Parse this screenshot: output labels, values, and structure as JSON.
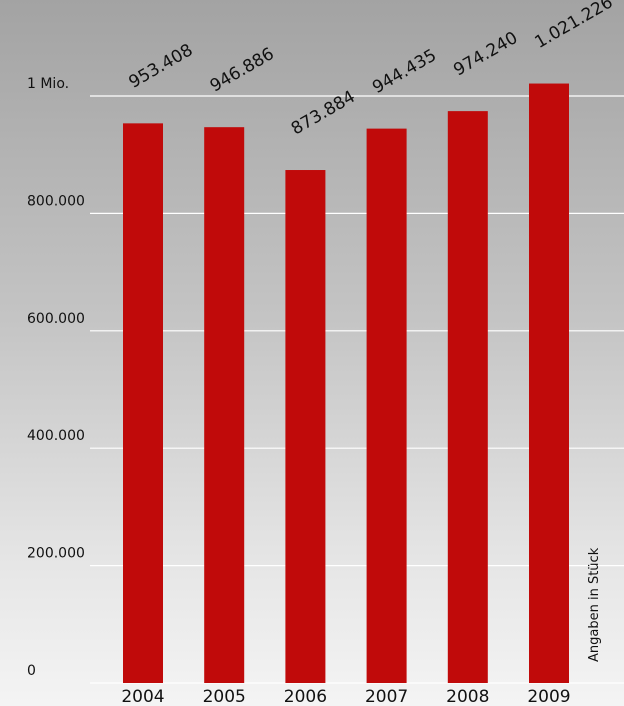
{
  "chart_data": {
    "type": "bar",
    "categories": [
      "2004",
      "2005",
      "2006",
      "2007",
      "2008",
      "2009"
    ],
    "values": [
      953408,
      946886,
      873884,
      944435,
      974240,
      1021226
    ],
    "value_labels": [
      "953.408",
      "946.886",
      "873.884",
      "944.435",
      "974.240",
      "1.021.226"
    ],
    "ylim": [
      0,
      1000000
    ],
    "yticks": [
      {
        "value": 0,
        "label": "0"
      },
      {
        "value": 200000,
        "label": "200.000"
      },
      {
        "value": 400000,
        "label": "400.000"
      },
      {
        "value": 600000,
        "label": "600.000"
      },
      {
        "value": 800000,
        "label": "800.000"
      },
      {
        "value": 1000000,
        "label": "1 Mio."
      }
    ],
    "grid": true,
    "unit_note": "Angaben in Stück",
    "bar_color": "#c00a0a",
    "grid_color": "#ffffff"
  }
}
